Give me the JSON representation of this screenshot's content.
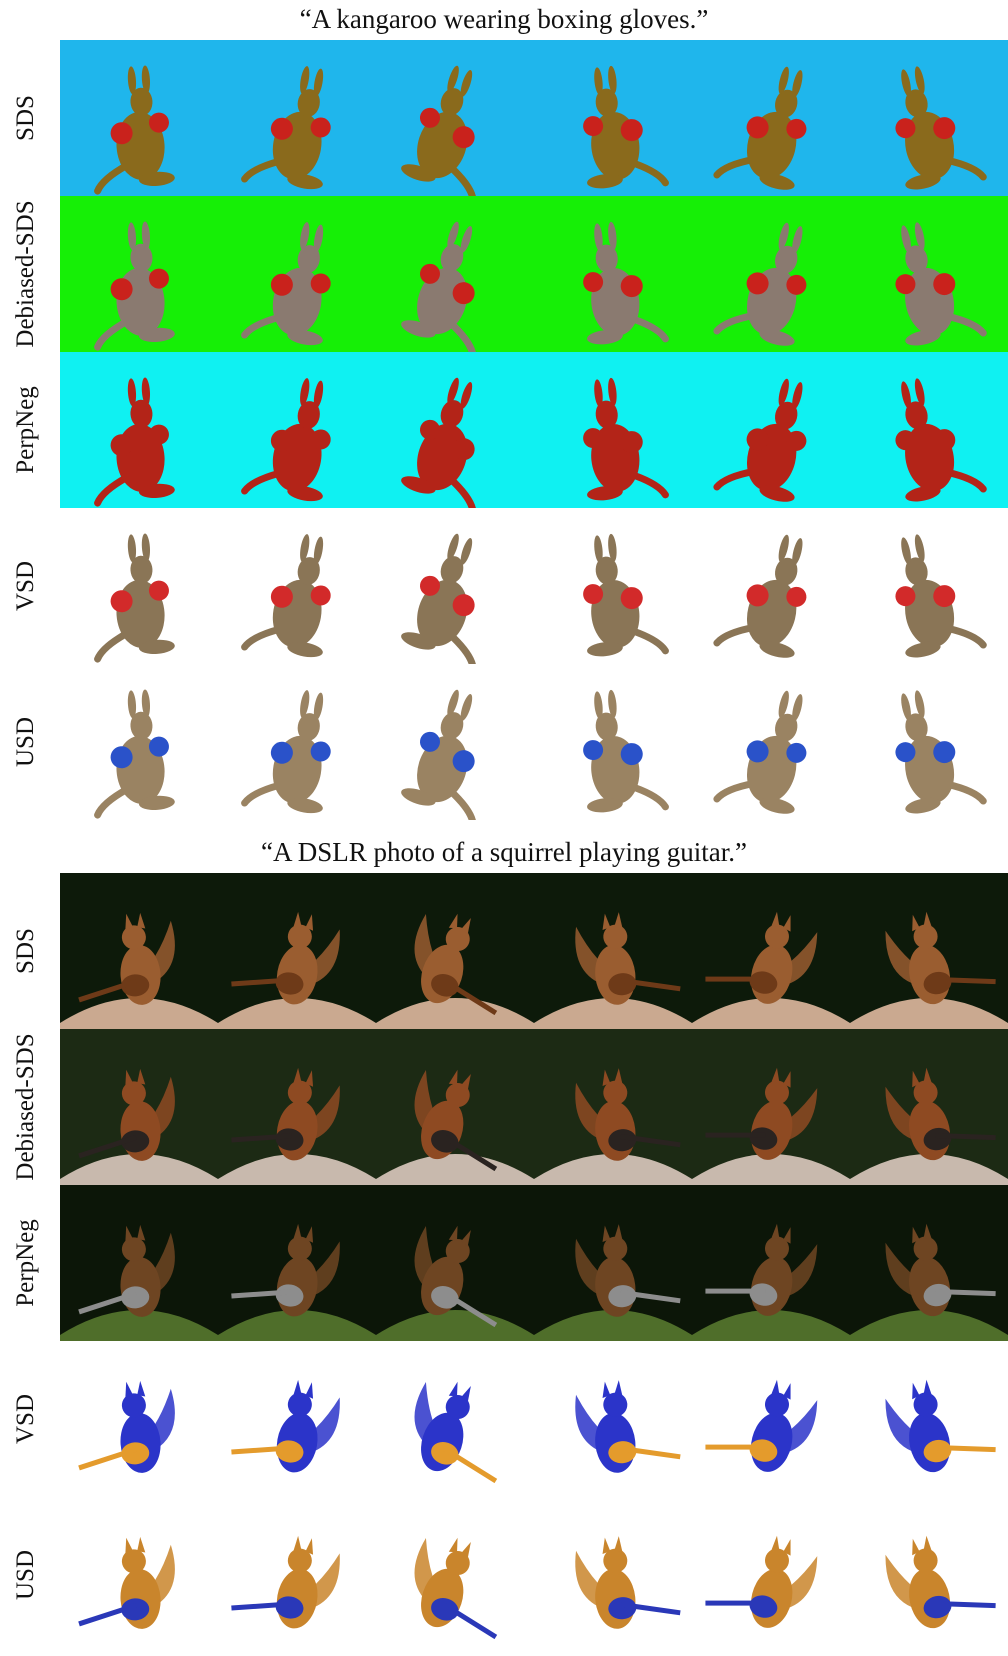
{
  "figure": [
    {
      "caption": "“A kangaroo wearing boxing gloves.”",
      "subject": "kangaroo",
      "rows": [
        {
          "label": "SDS",
          "background": "#1fb6ec",
          "body": "#8a6a1c",
          "accent": "#c9221c"
        },
        {
          "label": "Debiased-SDS",
          "background": "#16ef06",
          "body": "#8a7a70",
          "accent": "#c9221c"
        },
        {
          "label": "PerpNeg",
          "background": "#0ff1f2",
          "body": "#b32418",
          "accent": "#b32418"
        },
        {
          "label": "VSD",
          "background": "#ffffff",
          "body": "#8a7556",
          "accent": "#d22a2a"
        },
        {
          "label": "USD",
          "background": "#ffffff",
          "body": "#9a8362",
          "accent": "#2a52c9"
        }
      ]
    },
    {
      "caption": "“A DSLR photo of a squirrel playing guitar.”",
      "subject": "squirrel",
      "rows": [
        {
          "label": "SDS",
          "background": "#0d1a0a",
          "ground": "#caa990",
          "body": "#9a5d30",
          "accent": "#6e3a18"
        },
        {
          "label": "Debiased-SDS",
          "background": "#1c2a14",
          "ground": "#c8b9ad",
          "body": "#8e4a22",
          "accent": "#2a2320"
        },
        {
          "label": "PerpNeg",
          "background": "#0c1608",
          "ground": "#4f6e2a",
          "body": "#6e4522",
          "accent": "#8d8d8d"
        },
        {
          "label": "VSD",
          "background": "#ffffff",
          "body": "#2b34c9",
          "accent": "#e49b2c"
        },
        {
          "label": "USD",
          "background": "#ffffff",
          "body": "#c9852c",
          "accent": "#2a38b8"
        }
      ]
    }
  ]
}
